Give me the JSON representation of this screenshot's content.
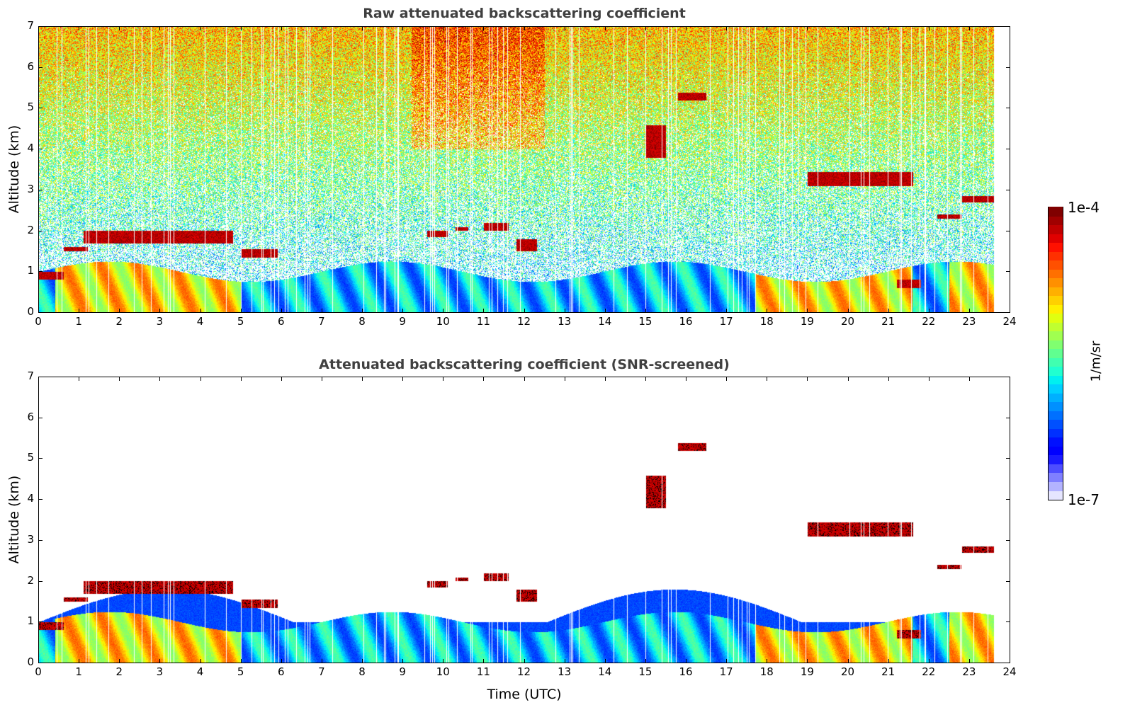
{
  "chart_data": [
    {
      "type": "heatmap",
      "title": "Raw attenuated backscattering coefficient",
      "xlabel": "",
      "ylabel": "Altitude (km)",
      "xlim": [
        0,
        24
      ],
      "ylim": [
        0,
        7
      ],
      "xticks": [
        "0",
        "1",
        "2",
        "3",
        "4",
        "5",
        "6",
        "7",
        "8",
        "9",
        "10",
        "11",
        "12",
        "13",
        "14",
        "15",
        "16",
        "17",
        "18",
        "19",
        "20",
        "21",
        "22",
        "23",
        "24"
      ],
      "yticks": [
        "0",
        "1",
        "2",
        "3",
        "4",
        "5",
        "6",
        "7"
      ],
      "data_extent_hours": [
        0,
        23.6
      ],
      "features": [
        {
          "name": "boundary-layer aerosol",
          "time": [
            0,
            23.6
          ],
          "altitude": [
            0,
            1.0
          ]
        },
        {
          "name": "low cloud",
          "time": [
            0,
            0.6
          ],
          "altitude": [
            0.8,
            1.0
          ]
        },
        {
          "name": "stratocumulus layer",
          "time": [
            0.6,
            1.2
          ],
          "altitude": [
            1.5,
            1.6
          ]
        },
        {
          "name": "stratocumulus layer",
          "time": [
            1.1,
            4.8
          ],
          "altitude": [
            1.7,
            2.0
          ]
        },
        {
          "name": "cloud layer",
          "time": [
            5.0,
            5.9
          ],
          "altitude": [
            1.35,
            1.55
          ]
        },
        {
          "name": "cloud",
          "time": [
            9.6,
            10.1
          ],
          "altitude": [
            1.85,
            2.0
          ]
        },
        {
          "name": "cloud",
          "time": [
            10.3,
            10.6
          ],
          "altitude": [
            2.0,
            2.1
          ]
        },
        {
          "name": "cloud",
          "time": [
            11.0,
            11.6
          ],
          "altitude": [
            2.0,
            2.2
          ]
        },
        {
          "name": "cloud",
          "time": [
            11.8,
            12.3
          ],
          "altitude": [
            1.5,
            1.8
          ]
        },
        {
          "name": "mid-level cloud",
          "time": [
            15.8,
            16.5
          ],
          "altitude": [
            5.2,
            5.4
          ]
        },
        {
          "name": "virga/fall streaks",
          "time": [
            15.0,
            15.5
          ],
          "altitude": [
            3.8,
            4.6
          ]
        },
        {
          "name": "mid-level layer",
          "time": [
            19.0,
            21.6
          ],
          "altitude": [
            3.1,
            3.45
          ]
        },
        {
          "name": "cloud",
          "time": [
            22.2,
            22.8
          ],
          "altitude": [
            2.3,
            2.4
          ]
        },
        {
          "name": "cloud",
          "time": [
            22.8,
            23.6
          ],
          "altitude": [
            2.7,
            2.85
          ]
        },
        {
          "name": "low cloud",
          "time": [
            21.2,
            21.8
          ],
          "altitude": [
            0.6,
            0.8
          ]
        },
        {
          "name": "elevated noise",
          "time": [
            9.2,
            12.5
          ],
          "altitude": [
            4.0,
            7.0
          ]
        }
      ]
    },
    {
      "type": "heatmap",
      "title": "Attenuated backscattering coefficient (SNR-screened)",
      "xlabel": "Time (UTC)",
      "ylabel": "Altitude (km)",
      "xlim": [
        0,
        24
      ],
      "ylim": [
        0,
        7
      ],
      "xticks": [
        "0",
        "1",
        "2",
        "3",
        "4",
        "5",
        "6",
        "7",
        "8",
        "9",
        "10",
        "11",
        "12",
        "13",
        "14",
        "15",
        "16",
        "17",
        "18",
        "19",
        "20",
        "21",
        "22",
        "23",
        "24"
      ],
      "yticks": [
        "0",
        "1",
        "2",
        "3",
        "4",
        "5",
        "6",
        "7"
      ],
      "data_extent_hours": [
        0,
        23.6
      ],
      "screened_top_km": 2.0
    }
  ],
  "colorbar": {
    "min_label": "1e-7",
    "max_label": "1e-4",
    "unit": "1/m/sr",
    "colormap": "jet",
    "scale": "log",
    "colors": [
      "#e6e6ff",
      "#b3b3ff",
      "#7f7fff",
      "#4d4dff",
      "#1a1aff",
      "#0000ff",
      "#0010ff",
      "#0030ff",
      "#0050ff",
      "#0070ff",
      "#0090ff",
      "#00b0ff",
      "#00d0ff",
      "#00f0f0",
      "#20ffd0",
      "#40ffb0",
      "#60ff90",
      "#80ff70",
      "#a0ff50",
      "#c0ff30",
      "#e0ff10",
      "#ffef00",
      "#ffd000",
      "#ffb000",
      "#ff9000",
      "#ff7000",
      "#ff5000",
      "#ff3000",
      "#ff1000",
      "#e00000",
      "#c00000",
      "#a00000",
      "#800000"
    ]
  }
}
